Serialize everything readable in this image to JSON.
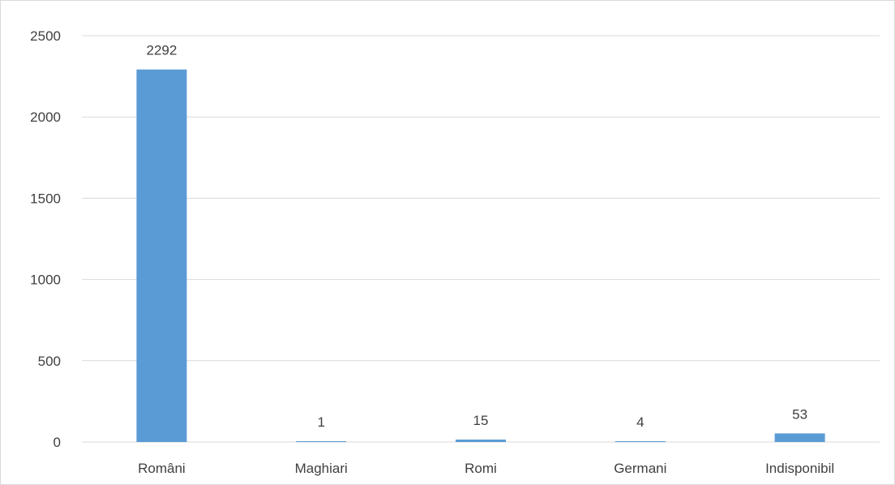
{
  "chart_data": {
    "type": "bar",
    "categories": [
      "Români",
      "Maghiari",
      "Romi",
      "Germani",
      "Indisponibil"
    ],
    "values": [
      2292,
      1,
      15,
      4,
      53
    ],
    "data_labels": [
      "2292",
      "1",
      "15",
      "4",
      "53"
    ],
    "title": "",
    "xlabel": "",
    "ylabel": "",
    "ylim": [
      0,
      2500
    ],
    "yticks": [
      0,
      500,
      1000,
      1500,
      2000,
      2500
    ],
    "ytick_labels": [
      "0",
      "500",
      "1000",
      "1500",
      "2000",
      "2500"
    ],
    "grid": true,
    "legend": "none",
    "bar_color": "#5b9bd5"
  }
}
